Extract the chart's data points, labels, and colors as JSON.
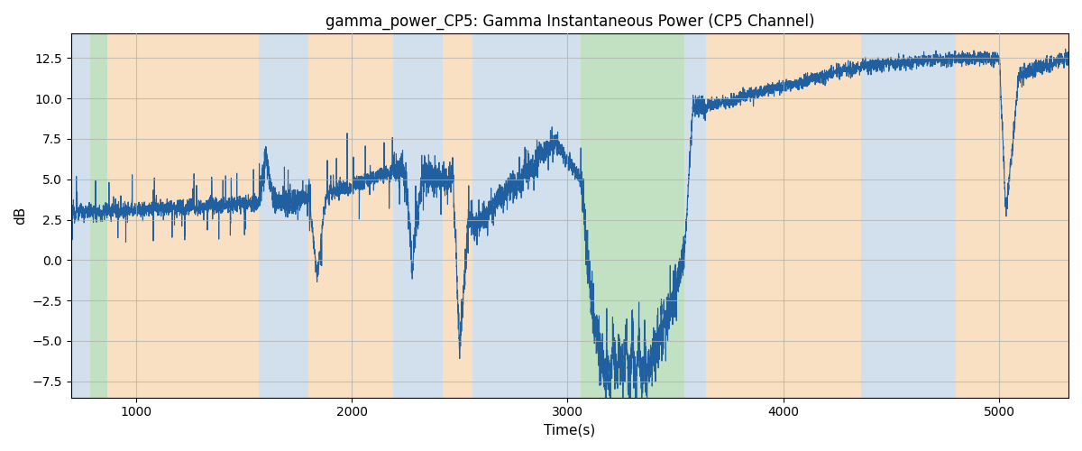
{
  "title": "gamma_power_CP5: Gamma Instantaneous Power (CP5 Channel)",
  "xlabel": "Time(s)",
  "ylabel": "dB",
  "xlim": [
    700,
    5320
  ],
  "ylim": [
    -8.5,
    14.0
  ],
  "line_color": "#2060a0",
  "line_width": 0.8,
  "bg_bands": [
    {
      "xmin": 700,
      "xmax": 790,
      "color": "#adc8e0",
      "alpha": 0.55
    },
    {
      "xmin": 790,
      "xmax": 870,
      "color": "#90c890",
      "alpha": 0.55
    },
    {
      "xmin": 870,
      "xmax": 1570,
      "color": "#f5c890",
      "alpha": 0.55
    },
    {
      "xmin": 1570,
      "xmax": 1800,
      "color": "#adc8e0",
      "alpha": 0.55
    },
    {
      "xmin": 1800,
      "xmax": 2190,
      "color": "#f5c890",
      "alpha": 0.55
    },
    {
      "xmin": 2190,
      "xmax": 2420,
      "color": "#adc8e0",
      "alpha": 0.55
    },
    {
      "xmin": 2420,
      "xmax": 2560,
      "color": "#f5c890",
      "alpha": 0.55
    },
    {
      "xmin": 2560,
      "xmax": 2960,
      "color": "#adc8e0",
      "alpha": 0.55
    },
    {
      "xmin": 2960,
      "xmax": 3060,
      "color": "#adc8e0",
      "alpha": 0.55
    },
    {
      "xmin": 3060,
      "xmax": 3540,
      "color": "#90c890",
      "alpha": 0.55
    },
    {
      "xmin": 3540,
      "xmax": 3640,
      "color": "#adc8e0",
      "alpha": 0.55
    },
    {
      "xmin": 3640,
      "xmax": 4360,
      "color": "#f5c890",
      "alpha": 0.55
    },
    {
      "xmin": 4360,
      "xmax": 4800,
      "color": "#adc8e0",
      "alpha": 0.55
    },
    {
      "xmin": 4800,
      "xmax": 5320,
      "color": "#f5c890",
      "alpha": 0.55
    }
  ],
  "xticks": [
    1000,
    2000,
    3000,
    4000,
    5000
  ],
  "yticks": [
    -7.5,
    -5.0,
    -2.5,
    0.0,
    2.5,
    5.0,
    7.5,
    10.0,
    12.5
  ],
  "grid_color": "#b0b0b0",
  "grid_alpha": 0.7,
  "grid_linewidth": 0.8,
  "title_fontsize": 12,
  "label_fontsize": 11
}
